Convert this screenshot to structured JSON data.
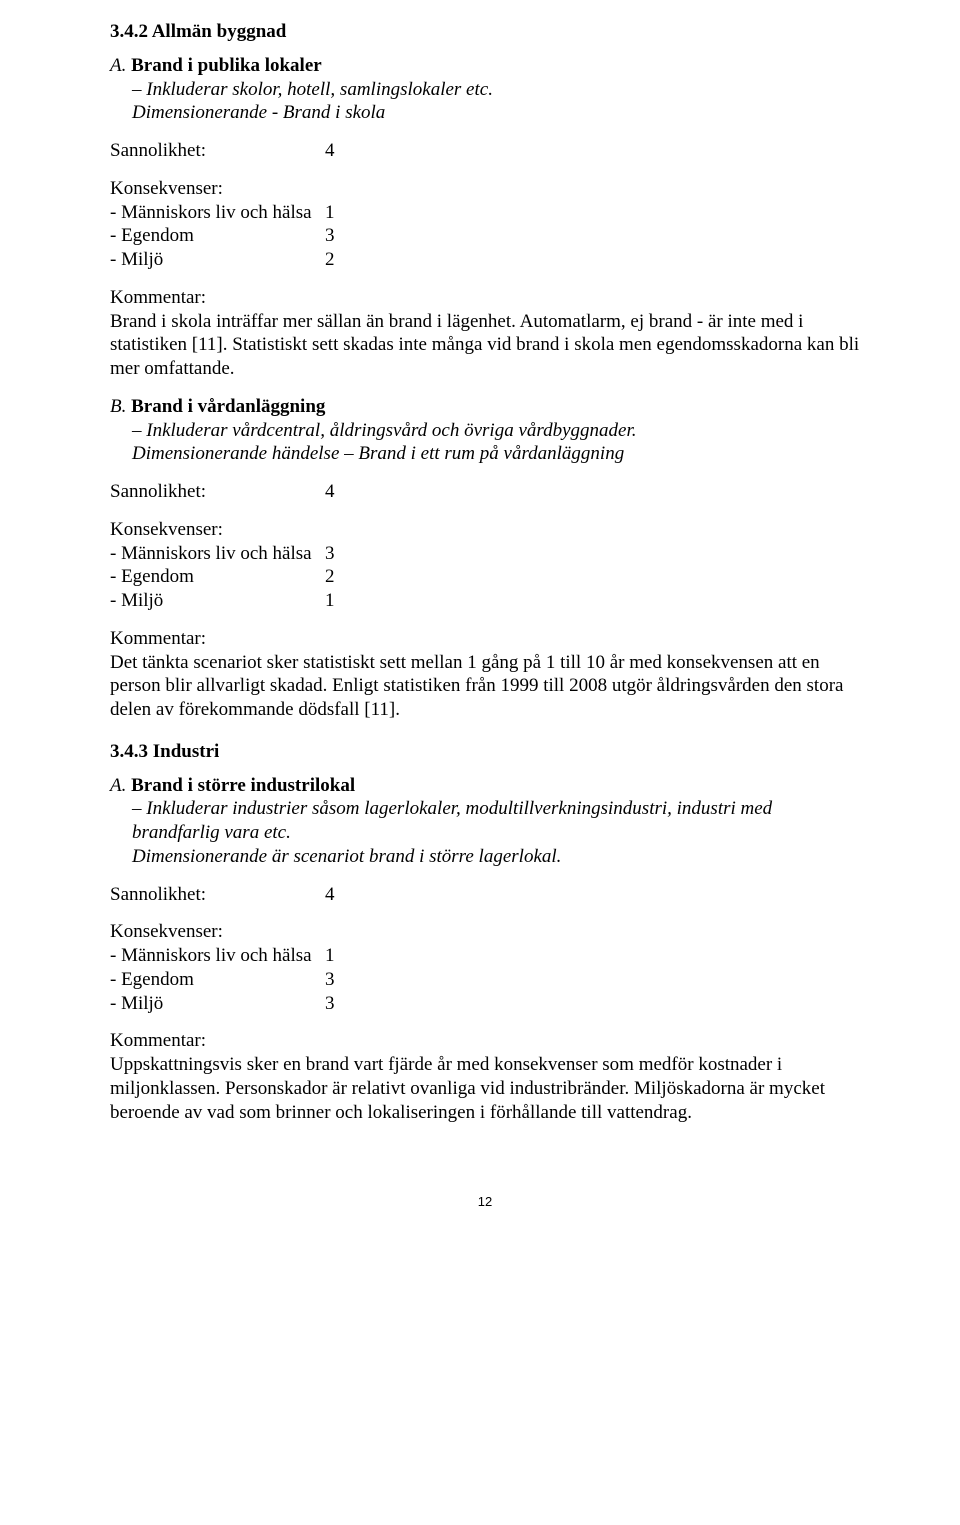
{
  "section342": {
    "heading": "3.4.2 Allmän byggnad",
    "itemA": {
      "lead": "A.",
      "name": "Brand i publika lokaler",
      "desc1": "– Inkluderar skolor, hotell, samlingslokaler etc.",
      "desc2": "Dimensionerande - Brand i skola",
      "sannolikhet_label": "Sannolikhet:",
      "sannolikhet_value": "4",
      "konsekvenser_label": "Konsekvenser:",
      "k1_label": "- Människors liv och hälsa",
      "k1_value": "1",
      "k2_label": "- Egendom",
      "k2_value": "3",
      "k3_label": "- Miljö",
      "k3_value": "2",
      "kommentar_label": "Kommentar:",
      "kommentar_text": "Brand i skola inträffar mer sällan än brand i lägenhet. Automatlarm, ej brand - är inte med i statistiken [11]. Statistiskt sett skadas inte många vid brand i skola men egendomsskadorna kan bli mer omfattande."
    },
    "itemB": {
      "lead": "B.",
      "name": "Brand i vårdanläggning",
      "desc1": "– Inkluderar vårdcentral, åldringsvård och övriga vårdbyggnader.",
      "desc2": "Dimensionerande händelse – Brand i ett rum på vårdanläggning",
      "sannolikhet_label": "Sannolikhet:",
      "sannolikhet_value": "4",
      "konsekvenser_label": "Konsekvenser:",
      "k1_label": "- Människors liv och hälsa",
      "k1_value": "3",
      "k2_label": "- Egendom",
      "k2_value": "2",
      "k3_label": "- Miljö",
      "k3_value": "1",
      "kommentar_label": "Kommentar:",
      "kommentar_text": "Det tänkta scenariot sker statistiskt sett mellan 1 gång på 1 till 10 år med konsekvensen att en person blir allvarligt skadad. Enligt statistiken från 1999 till 2008 utgör åldringsvården den stora delen av förekommande dödsfall [11]."
    }
  },
  "section343": {
    "heading": "3.4.3 Industri",
    "itemA": {
      "lead": "A.",
      "name": "Brand i större industrilokal",
      "desc1": "– Inkluderar industrier såsom lagerlokaler, modultillverkningsindustri, industri med brandfarlig vara etc.",
      "desc2": "Dimensionerande är scenariot brand i större lagerlokal.",
      "sannolikhet_label": "Sannolikhet:",
      "sannolikhet_value": "4",
      "konsekvenser_label": "Konsekvenser:",
      "k1_label": "- Människors liv och hälsa",
      "k1_value": "1",
      "k2_label": "- Egendom",
      "k2_value": "3",
      "k3_label": "- Miljö",
      "k3_value": "3",
      "kommentar_label": "Kommentar:",
      "kommentar_text": "Uppskattningsvis sker en brand vart fjärde år med konsekvenser som medför kostnader i miljonklassen. Personskador är relativt ovanliga vid industribränder. Miljöskadorna är mycket beroende av vad som brinner och lokaliseringen i förhållande till vattendrag."
    }
  },
  "page_number": "12"
}
